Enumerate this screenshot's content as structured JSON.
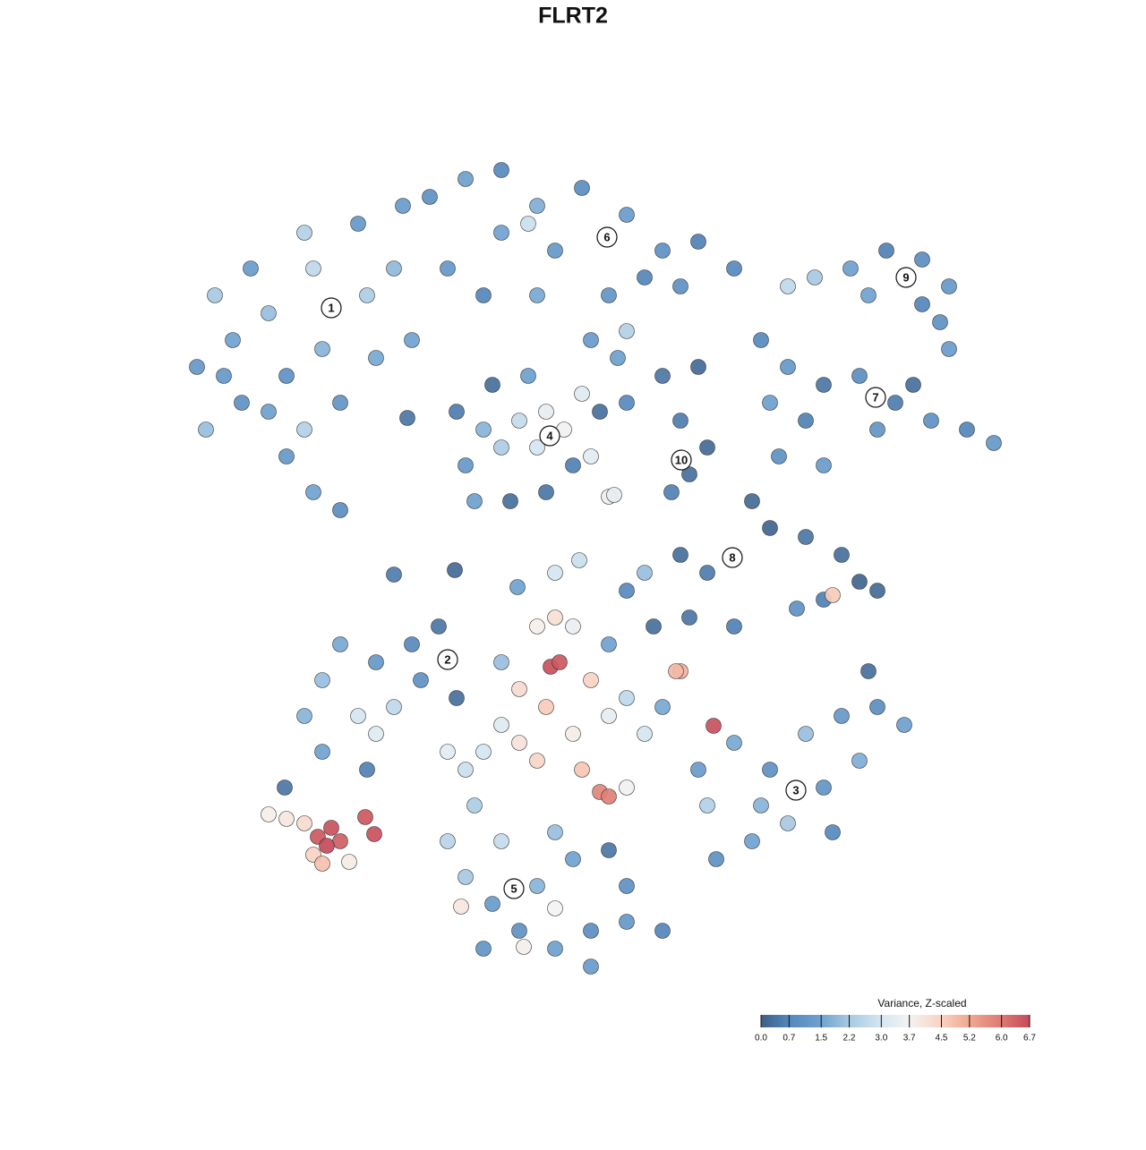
{
  "chart_data": {
    "type": "scatter",
    "title": "FLRT2",
    "xlim": [
      0,
      128
    ],
    "ylim": [
      -18,
      110
    ],
    "x": [
      22,
      24,
      26,
      28,
      30,
      32,
      34,
      35,
      36,
      38,
      40,
      41,
      42,
      44,
      45,
      32,
      35,
      38,
      30,
      27,
      23,
      46,
      34,
      25,
      48,
      52,
      56,
      60,
      62,
      65,
      70,
      74,
      78,
      82,
      56,
      50,
      54,
      60,
      68,
      72,
      76,
      66,
      70,
      69,
      59,
      88,
      91,
      95,
      99,
      103,
      106,
      105,
      106,
      103,
      97,
      85,
      88,
      92,
      96,
      100,
      104,
      108,
      111,
      102,
      98,
      90,
      87,
      92,
      86,
      74,
      78,
      76,
      77,
      75,
      79,
      70,
      67,
      84,
      86,
      90,
      94,
      96,
      98,
      92,
      89,
      93,
      76,
      79,
      72,
      70,
      73,
      77,
      82,
      61,
      63,
      60,
      58,
      56,
      54,
      52,
      53,
      57,
      61,
      64,
      51,
      55,
      59,
      65,
      66,
      68,
      34,
      36,
      38,
      40,
      42,
      44,
      42,
      46,
      49,
      51,
      47,
      36,
      41,
      60,
      62,
      61.5,
      62.5,
      58,
      61,
      58,
      60,
      56,
      54,
      64,
      66,
      68,
      70,
      72,
      65,
      67,
      68,
      70,
      76,
      75.5,
      79.7,
      52,
      50,
      64,
      68,
      56,
      74,
      62,
      78,
      82,
      86,
      90,
      94,
      98,
      101,
      96,
      92,
      88,
      84,
      80,
      79,
      85,
      93,
      50,
      52,
      55,
      58,
      62,
      66,
      70,
      74,
      60,
      64,
      62,
      56,
      53,
      70,
      68,
      58.5,
      51.5,
      62,
      54,
      66,
      30,
      32,
      35.5,
      37,
      38,
      36.5,
      40.8,
      41.8,
      35,
      36,
      39,
      31.8,
      34,
      44,
      50.8,
      57.8,
      64.7,
      97,
      45.5,
      68.6
    ],
    "y": [
      69,
      77,
      72,
      80,
      75,
      68,
      84,
      80,
      71,
      65,
      85,
      77,
      70,
      80,
      87,
      59,
      55,
      53,
      64,
      65,
      62,
      72,
      62,
      68,
      88,
      90,
      91,
      87,
      82,
      89,
      86,
      82,
      83,
      80,
      84,
      80,
      77,
      77,
      77,
      79,
      78,
      72,
      73,
      70,
      85,
      78,
      79,
      80,
      82,
      81,
      78,
      74,
      71,
      76,
      77,
      72,
      69,
      67,
      68,
      65,
      63,
      62,
      60.5,
      67,
      62,
      63,
      59,
      58,
      65,
      68,
      69,
      63,
      57,
      55,
      60,
      65,
      64,
      54,
      51,
      50,
      48,
      45,
      44,
      43,
      42,
      43.5,
      48,
      46,
      46,
      44,
      40,
      41,
      40,
      64,
      62,
      60,
      63,
      60,
      62,
      58,
      54,
      54,
      55,
      58,
      64,
      67,
      68,
      66,
      59,
      54.5,
      30,
      34,
      38,
      30,
      28,
      31,
      36,
      38,
      40,
      32,
      34,
      26,
      24,
      40,
      41,
      35.5,
      36,
      33,
      31,
      27,
      25,
      29,
      26,
      28,
      34,
      30,
      32,
      28,
      24,
      21.5,
      21,
      22,
      35,
      35,
      28.9,
      24,
      26,
      40,
      38,
      36,
      31,
      46,
      24,
      27,
      24,
      28,
      30,
      31,
      29,
      25,
      22,
      18,
      16,
      14,
      20,
      20,
      17,
      16,
      12,
      9,
      6,
      4,
      6,
      7,
      6,
      11,
      14,
      17,
      16,
      20,
      11,
      15,
      4.2,
      8.7,
      8.5,
      4,
      2,
      19,
      18.5,
      16.5,
      17.5,
      16,
      15.5,
      18.7,
      16.8,
      14.5,
      13.5,
      13.7,
      22,
      18,
      45.8,
      46.3,
      44.4,
      47.4,
      35,
      63.3,
      54.7
    ],
    "values": [
      1.2,
      2.2,
      1.5,
      1.3,
      2.0,
      1.0,
      2.4,
      2.6,
      1.8,
      1.1,
      1.2,
      2.3,
      1.6,
      1.9,
      1.3,
      1.2,
      1.5,
      0.9,
      1.4,
      1.0,
      2.0,
      1.5,
      2.4,
      1.2,
      1.0,
      1.4,
      0.8,
      1.7,
      1.2,
      0.9,
      1.3,
      1.0,
      0.6,
      0.8,
      1.5,
      1.2,
      0.7,
      1.6,
      1.1,
      0.7,
      1.0,
      1.3,
      2.4,
      1.4,
      2.8,
      2.6,
      2.2,
      1.4,
      0.6,
      0.9,
      1.2,
      1.0,
      1.3,
      0.7,
      1.5,
      0.8,
      1.2,
      0.4,
      0.9,
      0.5,
      1.0,
      0.7,
      1.2,
      0.3,
      1.1,
      0.6,
      1.0,
      1.3,
      1.4,
      0.4,
      0.2,
      0.5,
      0.3,
      0.6,
      0.2,
      0.8,
      0.3,
      0.2,
      0.1,
      0.4,
      0.3,
      0.1,
      0.2,
      0.6,
      1.0,
      4.6,
      0.3,
      0.5,
      2.0,
      0.8,
      0.3,
      0.4,
      0.6,
      3.4,
      3.6,
      3.0,
      2.7,
      2.3,
      1.8,
      1.2,
      1.4,
      0.3,
      0.4,
      0.6,
      0.5,
      0.3,
      1.4,
      3.2,
      3.3,
      3.5,
      1.8,
      2.0,
      1.6,
      3.0,
      3.2,
      2.6,
      1.2,
      0.8,
      0.4,
      0.3,
      1.0,
      1.5,
      0.6,
      3.8,
      4.2,
      6.6,
      6.5,
      4.3,
      4.6,
      4.1,
      4.4,
      3.2,
      3.0,
      3.9,
      4.5,
      3.4,
      2.6,
      3.0,
      4.7,
      5.8,
      5.9,
      3.6,
      5.0,
      4.9,
      6.6,
      2.8,
      3.3,
      3.5,
      1.5,
      2.0,
      1.6,
      3.0,
      1.3,
      1.6,
      1.0,
      2.0,
      1.2,
      0.9,
      1.4,
      1.7,
      1.1,
      2.2,
      1.5,
      1.0,
      2.4,
      1.8,
      0.8,
      2.5,
      2.2,
      1.3,
      1.0,
      1.4,
      0.9,
      1.2,
      0.7,
      1.8,
      1.5,
      2.0,
      2.7,
      2.3,
      1.0,
      0.4,
      3.8,
      4.0,
      3.7,
      1.1,
      1.3,
      3.8,
      4.0,
      6.5,
      6.6,
      6.4,
      6.7,
      6.5,
      6.6,
      4.5,
      4.8,
      3.9,
      0.4,
      4.3,
      0.5,
      0.2,
      1.5,
      2.8,
      0.3,
      0.4,
      3.4
    ],
    "cluster_labels": [
      {
        "label": "1",
        "x": 37,
        "y": 75.6
      },
      {
        "label": "2",
        "x": 50,
        "y": 36.3
      },
      {
        "label": "3",
        "x": 88.9,
        "y": 21.7
      },
      {
        "label": "4",
        "x": 61.4,
        "y": 61.3
      },
      {
        "label": "5",
        "x": 57.4,
        "y": 10.7
      },
      {
        "label": "6",
        "x": 67.8,
        "y": 83.5
      },
      {
        "label": "7",
        "x": 97.8,
        "y": 65.6
      },
      {
        "label": "8",
        "x": 81.8,
        "y": 47.7
      },
      {
        "label": "9",
        "x": 101.2,
        "y": 79
      },
      {
        "label": "10",
        "x": 76.1,
        "y": 58.6
      }
    ],
    "colorbar": {
      "title": "Variance, Z-scaled",
      "ticks": [
        {
          "value": 0,
          "label": "0.0"
        },
        0.7,
        1.5,
        2.2,
        {
          "value": 3,
          "label": "3.0"
        },
        3.7,
        4.5,
        5.2,
        {
          "value": 6,
          "label": "6.0"
        },
        6.7
      ],
      "colors": [
        "#3e5f87",
        "#5487bb",
        "#6fa2d0",
        "#a7c9e2",
        "#d5e6f1",
        "#f4f3f2",
        "#f8d2c2",
        "#f0a78f",
        "#dd7a72",
        "#c54a59"
      ]
    }
  }
}
